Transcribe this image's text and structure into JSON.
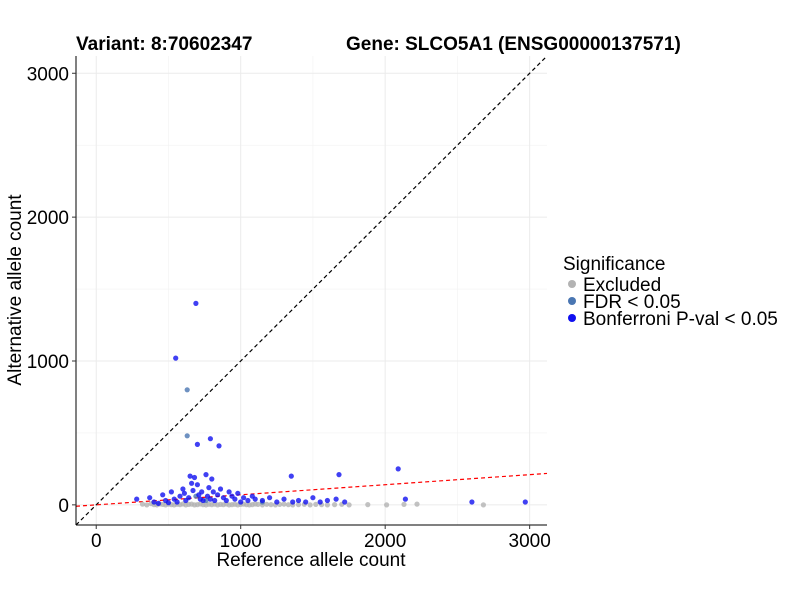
{
  "chart_data": {
    "type": "scatter",
    "title_left": "Variant: 8:70602347",
    "title_right": "Gene: SLCO5A1 (ENSG00000137571)",
    "xlabel": "Reference allele count",
    "ylabel": "Alternative allele count",
    "xlim": [
      -140,
      3120
    ],
    "ylim": [
      -140,
      3120
    ],
    "x_ticks": [
      0,
      1000,
      2000,
      3000
    ],
    "y_ticks": [
      0,
      1000,
      2000,
      3000
    ],
    "grid": true,
    "legend": {
      "title": "Significance",
      "placement": "right",
      "entries": [
        {
          "label": "Excluded",
          "color": "#b3b3b3"
        },
        {
          "label": "FDR < 0.05",
          "color": "#4a76b2"
        },
        {
          "label": "Bonferroni P-val < 0.05",
          "color": "#1010f0"
        }
      ]
    },
    "reference_lines": [
      {
        "style": "dashed",
        "color": "#000000",
        "intercept": 0,
        "slope": 1
      },
      {
        "style": "dashed",
        "color": "#ff0000",
        "intercept": 0,
        "slope": 0.07
      }
    ],
    "series": [
      {
        "name": "Excluded",
        "color": "#b3b3b3",
        "points": [
          [
            320,
            5
          ],
          [
            350,
            0
          ],
          [
            380,
            8
          ],
          [
            400,
            2
          ],
          [
            420,
            0
          ],
          [
            440,
            6
          ],
          [
            460,
            3
          ],
          [
            480,
            0
          ],
          [
            500,
            5
          ],
          [
            520,
            2
          ],
          [
            540,
            0
          ],
          [
            560,
            4
          ],
          [
            580,
            1
          ],
          [
            600,
            6
          ],
          [
            620,
            0
          ],
          [
            640,
            3
          ],
          [
            660,
            5
          ],
          [
            680,
            0
          ],
          [
            700,
            2
          ],
          [
            720,
            6
          ],
          [
            740,
            1
          ],
          [
            760,
            0
          ],
          [
            780,
            4
          ],
          [
            800,
            2
          ],
          [
            820,
            5
          ],
          [
            840,
            0
          ],
          [
            860,
            3
          ],
          [
            880,
            1
          ],
          [
            900,
            6
          ],
          [
            920,
            0
          ],
          [
            940,
            2
          ],
          [
            960,
            4
          ],
          [
            980,
            0
          ],
          [
            1000,
            3
          ],
          [
            1020,
            5
          ],
          [
            1040,
            1
          ],
          [
            1060,
            0
          ],
          [
            1080,
            2
          ],
          [
            1100,
            6
          ],
          [
            1120,
            3
          ],
          [
            1150,
            0
          ],
          [
            1180,
            4
          ],
          [
            1210,
            2
          ],
          [
            1240,
            0
          ],
          [
            1270,
            3
          ],
          [
            1300,
            5
          ],
          [
            1330,
            1
          ],
          [
            1360,
            0
          ],
          [
            1400,
            2
          ],
          [
            1440,
            4
          ],
          [
            1480,
            0
          ],
          [
            1520,
            3
          ],
          [
            1560,
            1
          ],
          [
            1600,
            0
          ],
          [
            1650,
            2
          ],
          [
            1700,
            4
          ],
          [
            1750,
            0
          ],
          [
            1880,
            2
          ],
          [
            2010,
            0
          ],
          [
            2130,
            3
          ],
          [
            2220,
            5
          ],
          [
            2680,
            0
          ]
        ]
      },
      {
        "name": "FDR < 0.05",
        "color": "#4a76b2",
        "points": [
          [
            630,
            800
          ],
          [
            630,
            480
          ],
          [
            690,
            60
          ],
          [
            760,
            30
          ],
          [
            1150,
            20
          ]
        ]
      },
      {
        "name": "Bonferroni P-val < 0.05",
        "color": "#1010f0",
        "points": [
          [
            690,
            1400
          ],
          [
            550,
            1020
          ],
          [
            790,
            460
          ],
          [
            850,
            410
          ],
          [
            700,
            420
          ],
          [
            1350,
            200
          ],
          [
            1680,
            210
          ],
          [
            2090,
            250
          ],
          [
            2140,
            40
          ],
          [
            2600,
            20
          ],
          [
            2970,
            20
          ],
          [
            280,
            40
          ],
          [
            370,
            50
          ],
          [
            400,
            20
          ],
          [
            430,
            10
          ],
          [
            460,
            70
          ],
          [
            480,
            30
          ],
          [
            500,
            15
          ],
          [
            520,
            90
          ],
          [
            540,
            40
          ],
          [
            560,
            20
          ],
          [
            580,
            60
          ],
          [
            600,
            110
          ],
          [
            610,
            80
          ],
          [
            620,
            30
          ],
          [
            640,
            50
          ],
          [
            650,
            200
          ],
          [
            660,
            150
          ],
          [
            670,
            100
          ],
          [
            680,
            190
          ],
          [
            700,
            140
          ],
          [
            710,
            70
          ],
          [
            720,
            40
          ],
          [
            730,
            90
          ],
          [
            740,
            30
          ],
          [
            760,
            210
          ],
          [
            770,
            60
          ],
          [
            780,
            120
          ],
          [
            790,
            40
          ],
          [
            800,
            180
          ],
          [
            810,
            90
          ],
          [
            820,
            30
          ],
          [
            840,
            70
          ],
          [
            860,
            110
          ],
          [
            880,
            50
          ],
          [
            900,
            30
          ],
          [
            920,
            90
          ],
          [
            940,
            60
          ],
          [
            960,
            40
          ],
          [
            980,
            80
          ],
          [
            1000,
            20
          ],
          [
            1020,
            50
          ],
          [
            1050,
            30
          ],
          [
            1080,
            60
          ],
          [
            1100,
            40
          ],
          [
            1150,
            30
          ],
          [
            1200,
            50
          ],
          [
            1250,
            20
          ],
          [
            1300,
            40
          ],
          [
            1360,
            20
          ],
          [
            1400,
            30
          ],
          [
            1450,
            20
          ],
          [
            1500,
            50
          ],
          [
            1550,
            20
          ],
          [
            1600,
            30
          ],
          [
            1660,
            40
          ],
          [
            1720,
            20
          ]
        ]
      }
    ]
  }
}
